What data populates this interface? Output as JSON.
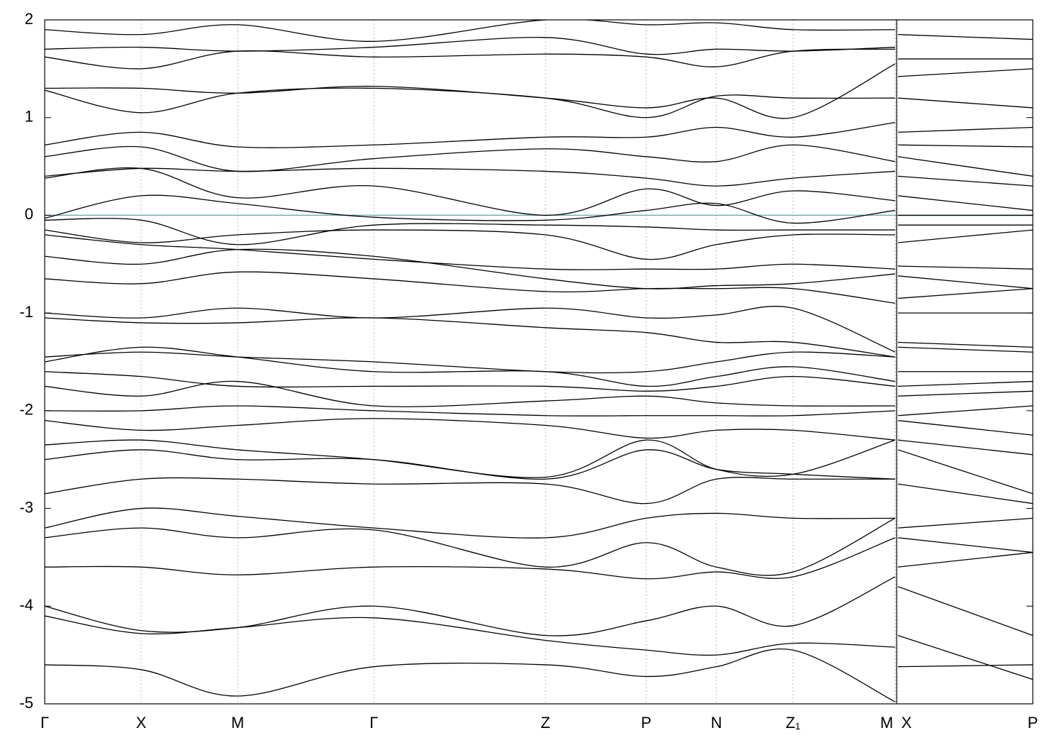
{
  "chart_data": {
    "type": "line",
    "x": [
      0,
      136,
      272,
      464,
      706,
      848,
      947,
      1055,
      1199,
      1201,
      1203,
      1393
    ],
    "xlim": [
      0,
      1393
    ],
    "xticks": [
      {
        "value": 0,
        "label": "Γ"
      },
      {
        "value": 136,
        "label": "X"
      },
      {
        "value": 272,
        "label": "M"
      },
      {
        "value": 464,
        "label": "Γ"
      },
      {
        "value": 706,
        "label": "Z"
      },
      {
        "value": 848,
        "label": "P"
      },
      {
        "value": 947,
        "label": "N"
      },
      {
        "value": 1055,
        "label": "Z₁"
      },
      {
        "value": 1199,
        "label": "M"
      },
      {
        "value": 1203,
        "label": "X"
      },
      {
        "value": 1393,
        "label": "P"
      }
    ],
    "ylim": [
      -5,
      2
    ],
    "yticks": [
      -5,
      -4,
      -3,
      -2,
      -1,
      0,
      1,
      2
    ],
    "grid": true,
    "fermi_level": 0,
    "fermi_color": "#5ab4c8",
    "series": [
      {
        "color": "#000000",
        "values": [
          -4.6,
          -4.65,
          -4.92,
          -4.62,
          -4.6,
          -4.72,
          -4.62,
          -4.45,
          -4.98,
          null,
          -4.62,
          -4.6
        ]
      },
      {
        "color": "#000000",
        "values": [
          -4.1,
          -4.28,
          -4.22,
          -4.12,
          -4.35,
          -4.45,
          -4.5,
          -4.38,
          -4.42,
          null,
          -4.3,
          -4.75
        ]
      },
      {
        "color": "#000000",
        "values": [
          -4.0,
          -4.25,
          -4.22,
          -4.0,
          -4.3,
          -4.15,
          -4.0,
          -4.2,
          -3.7,
          null,
          -3.8,
          -4.3
        ]
      },
      {
        "color": "#000000",
        "values": [
          -3.6,
          -3.6,
          -3.68,
          -3.6,
          -3.62,
          -3.72,
          -3.65,
          -3.7,
          -3.3,
          null,
          -3.6,
          -3.45
        ]
      },
      {
        "color": "#000000",
        "values": [
          -3.3,
          -3.2,
          -3.3,
          -3.22,
          -3.6,
          -3.35,
          -3.6,
          -3.65,
          -3.1,
          null,
          -3.3,
          -3.45
        ]
      },
      {
        "color": "#000000",
        "values": [
          -3.2,
          -3.0,
          -3.08,
          -3.2,
          -3.3,
          -3.1,
          -3.05,
          -3.1,
          -3.1,
          null,
          -3.2,
          -3.1
        ]
      },
      {
        "color": "#000000",
        "values": [
          -2.85,
          -2.7,
          -2.7,
          -2.75,
          -2.75,
          -2.95,
          -2.7,
          -2.7,
          -2.7,
          null,
          -2.75,
          -2.95
        ]
      },
      {
        "color": "#000000",
        "values": [
          -2.5,
          -2.4,
          -2.5,
          -2.5,
          -2.7,
          -2.4,
          -2.6,
          -2.65,
          -2.7,
          null,
          -2.4,
          -2.85
        ]
      },
      {
        "color": "#000000",
        "values": [
          -2.35,
          -2.3,
          -2.4,
          -2.5,
          -2.68,
          -2.3,
          -2.6,
          -2.65,
          -2.3,
          null,
          -2.3,
          -2.45
        ]
      },
      {
        "color": "#000000",
        "values": [
          -2.1,
          -2.2,
          -2.15,
          -2.08,
          -2.15,
          -2.28,
          -2.2,
          -2.2,
          -2.3,
          null,
          -2.1,
          -2.25
        ]
      },
      {
        "color": "#000000",
        "values": [
          -2.0,
          -2.0,
          -1.95,
          -2.0,
          -2.05,
          -2.05,
          -2.05,
          -2.05,
          -2.0,
          null,
          -2.05,
          -1.95
        ]
      },
      {
        "color": "#000000",
        "values": [
          -1.75,
          -1.85,
          -1.7,
          -1.95,
          -1.9,
          -1.85,
          -1.92,
          -1.95,
          -1.95,
          null,
          -1.85,
          -1.8
        ]
      },
      {
        "color": "#000000",
        "values": [
          -1.6,
          -1.65,
          -1.75,
          -1.75,
          -1.75,
          -1.8,
          -1.75,
          -1.65,
          -1.75,
          null,
          -1.75,
          -1.7
        ]
      },
      {
        "color": "#000000",
        "values": [
          -1.5,
          -1.35,
          -1.45,
          -1.6,
          -1.6,
          -1.75,
          -1.65,
          -1.55,
          -1.7,
          null,
          -1.6,
          -1.6
        ]
      },
      {
        "color": "#000000",
        "values": [
          -1.45,
          -1.4,
          -1.45,
          -1.5,
          -1.6,
          -1.6,
          -1.5,
          -1.4,
          -1.45,
          null,
          -1.35,
          -1.4
        ]
      },
      {
        "color": "#000000",
        "values": [
          -1.05,
          -1.1,
          -1.1,
          -1.05,
          -1.15,
          -1.2,
          -1.3,
          -1.3,
          -1.45,
          null,
          -1.3,
          -1.35
        ]
      },
      {
        "color": "#000000",
        "values": [
          -1.0,
          -1.05,
          -0.95,
          -1.05,
          -0.95,
          -1.05,
          -1.02,
          -0.95,
          -1.4,
          null,
          -1.0,
          -1.0
        ]
      },
      {
        "color": "#000000",
        "values": [
          -0.65,
          -0.7,
          -0.58,
          -0.65,
          -0.78,
          -0.75,
          -0.75,
          -0.75,
          -0.9,
          null,
          -0.85,
          -0.75
        ]
      },
      {
        "color": "#000000",
        "values": [
          -0.42,
          -0.5,
          -0.35,
          -0.42,
          -0.65,
          -0.75,
          -0.72,
          -0.7,
          -0.6,
          null,
          -0.62,
          -0.75
        ]
      },
      {
        "color": "#000000",
        "values": [
          -0.2,
          -0.3,
          -0.35,
          -0.45,
          -0.55,
          -0.55,
          -0.55,
          -0.5,
          -0.55,
          null,
          -0.52,
          -0.55
        ]
      },
      {
        "color": "#000000",
        "values": [
          -0.15,
          -0.28,
          -0.2,
          -0.15,
          -0.2,
          -0.45,
          -0.3,
          -0.2,
          -0.2,
          null,
          -0.28,
          -0.15
        ]
      },
      {
        "color": "#000000",
        "values": [
          -0.05,
          -0.05,
          -0.3,
          -0.1,
          -0.1,
          -0.12,
          -0.15,
          -0.15,
          -0.15,
          null,
          -0.1,
          -0.1
        ]
      },
      {
        "color": "#000000",
        "values": [
          -0.03,
          0.2,
          0.12,
          -0.02,
          -0.05,
          0.05,
          0.12,
          -0.08,
          0.05,
          null,
          0.0,
          0.0
        ]
      },
      {
        "color": "#000000",
        "values": [
          0.38,
          0.48,
          0.18,
          0.3,
          0.0,
          0.27,
          0.1,
          0.25,
          0.15,
          null,
          0.2,
          0.05
        ]
      },
      {
        "color": "#000000",
        "values": [
          0.4,
          0.48,
          0.45,
          0.48,
          0.45,
          0.38,
          0.3,
          0.38,
          0.45,
          null,
          0.4,
          0.3
        ]
      },
      {
        "color": "#000000",
        "values": [
          0.6,
          0.7,
          0.45,
          0.58,
          0.68,
          0.6,
          0.55,
          0.72,
          0.55,
          null,
          0.6,
          0.4
        ]
      },
      {
        "color": "#000000",
        "values": [
          0.72,
          0.85,
          0.7,
          0.72,
          0.8,
          0.8,
          0.9,
          0.8,
          0.95,
          null,
          0.72,
          0.7
        ]
      },
      {
        "color": "#000000",
        "values": [
          1.28,
          1.05,
          1.25,
          1.3,
          1.2,
          1.0,
          1.22,
          1.2,
          1.2,
          null,
          0.85,
          0.9
        ]
      },
      {
        "color": "#000000",
        "values": [
          1.3,
          1.3,
          1.25,
          1.32,
          1.2,
          1.1,
          1.2,
          1.0,
          1.55,
          null,
          1.2,
          1.1
        ]
      },
      {
        "color": "#000000",
        "values": [
          1.62,
          1.5,
          1.68,
          1.62,
          1.65,
          1.62,
          1.52,
          1.68,
          1.7,
          null,
          1.42,
          1.5
        ]
      },
      {
        "color": "#000000",
        "values": [
          1.7,
          1.72,
          1.68,
          1.72,
          1.82,
          1.65,
          1.7,
          1.68,
          1.72,
          null,
          1.6,
          1.6
        ]
      },
      {
        "color": "#000000",
        "values": [
          1.9,
          1.85,
          1.95,
          1.78,
          2.0,
          1.95,
          1.97,
          1.9,
          1.9,
          null,
          1.85,
          1.8
        ]
      }
    ]
  }
}
